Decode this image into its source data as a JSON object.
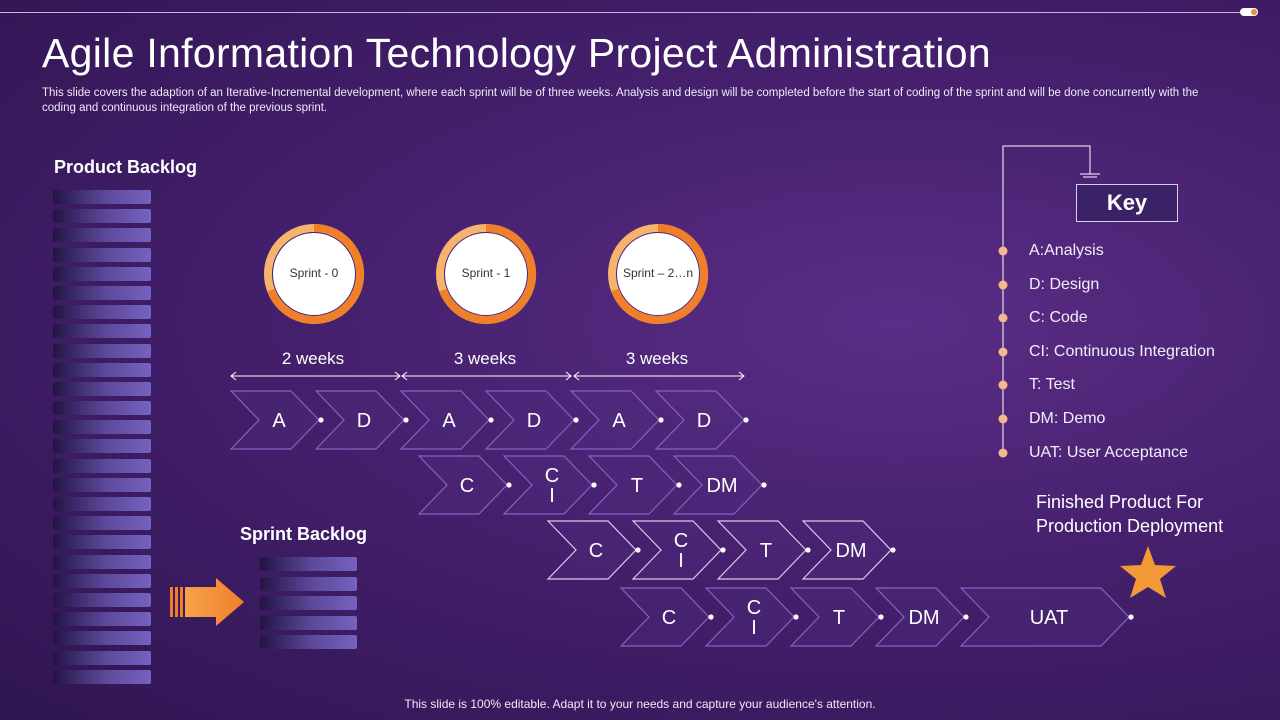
{
  "title": "Agile Information Technology Project Administration",
  "subtitle": "This slide covers the adaption of an Iterative-Incremental  development,  where each sprint will be of three weeks. Analysis and design will be completed before the start of coding of the sprint and will be done concurrently with the coding and continuous integration of the previous  sprint.",
  "product_backlog_label": "Product Backlog",
  "sprint_backlog_label": "Sprint Backlog",
  "sprints": [
    "Sprint - 0",
    "Sprint - 1",
    "Sprint – 2…n"
  ],
  "durations": [
    "2 weeks",
    "3 weeks",
    "3 weeks"
  ],
  "rows": [
    [
      "A",
      "D",
      "A",
      "D",
      "A",
      "D"
    ],
    [
      "C",
      "C\nI",
      "T",
      "DM"
    ],
    [
      "C",
      "C\nI",
      "T",
      "DM"
    ],
    [
      "C",
      "C\nI",
      "T",
      "DM",
      "UAT"
    ]
  ],
  "key": {
    "title": "Key",
    "items": [
      "A:Analysis",
      "D: Design",
      "C: Code",
      "CI: Continuous Integration",
      "T: Test",
      "DM: Demo",
      "UAT: User Acceptance"
    ]
  },
  "finished_label": "Finished Product For Production Deployment",
  "footer": "This slide is 100% editable. Adapt it to your needs and capture your audience's attention.",
  "colors": {
    "accent": "#f2883b",
    "background": "#45206d",
    "chevron_stroke": "#8a5fc4"
  }
}
